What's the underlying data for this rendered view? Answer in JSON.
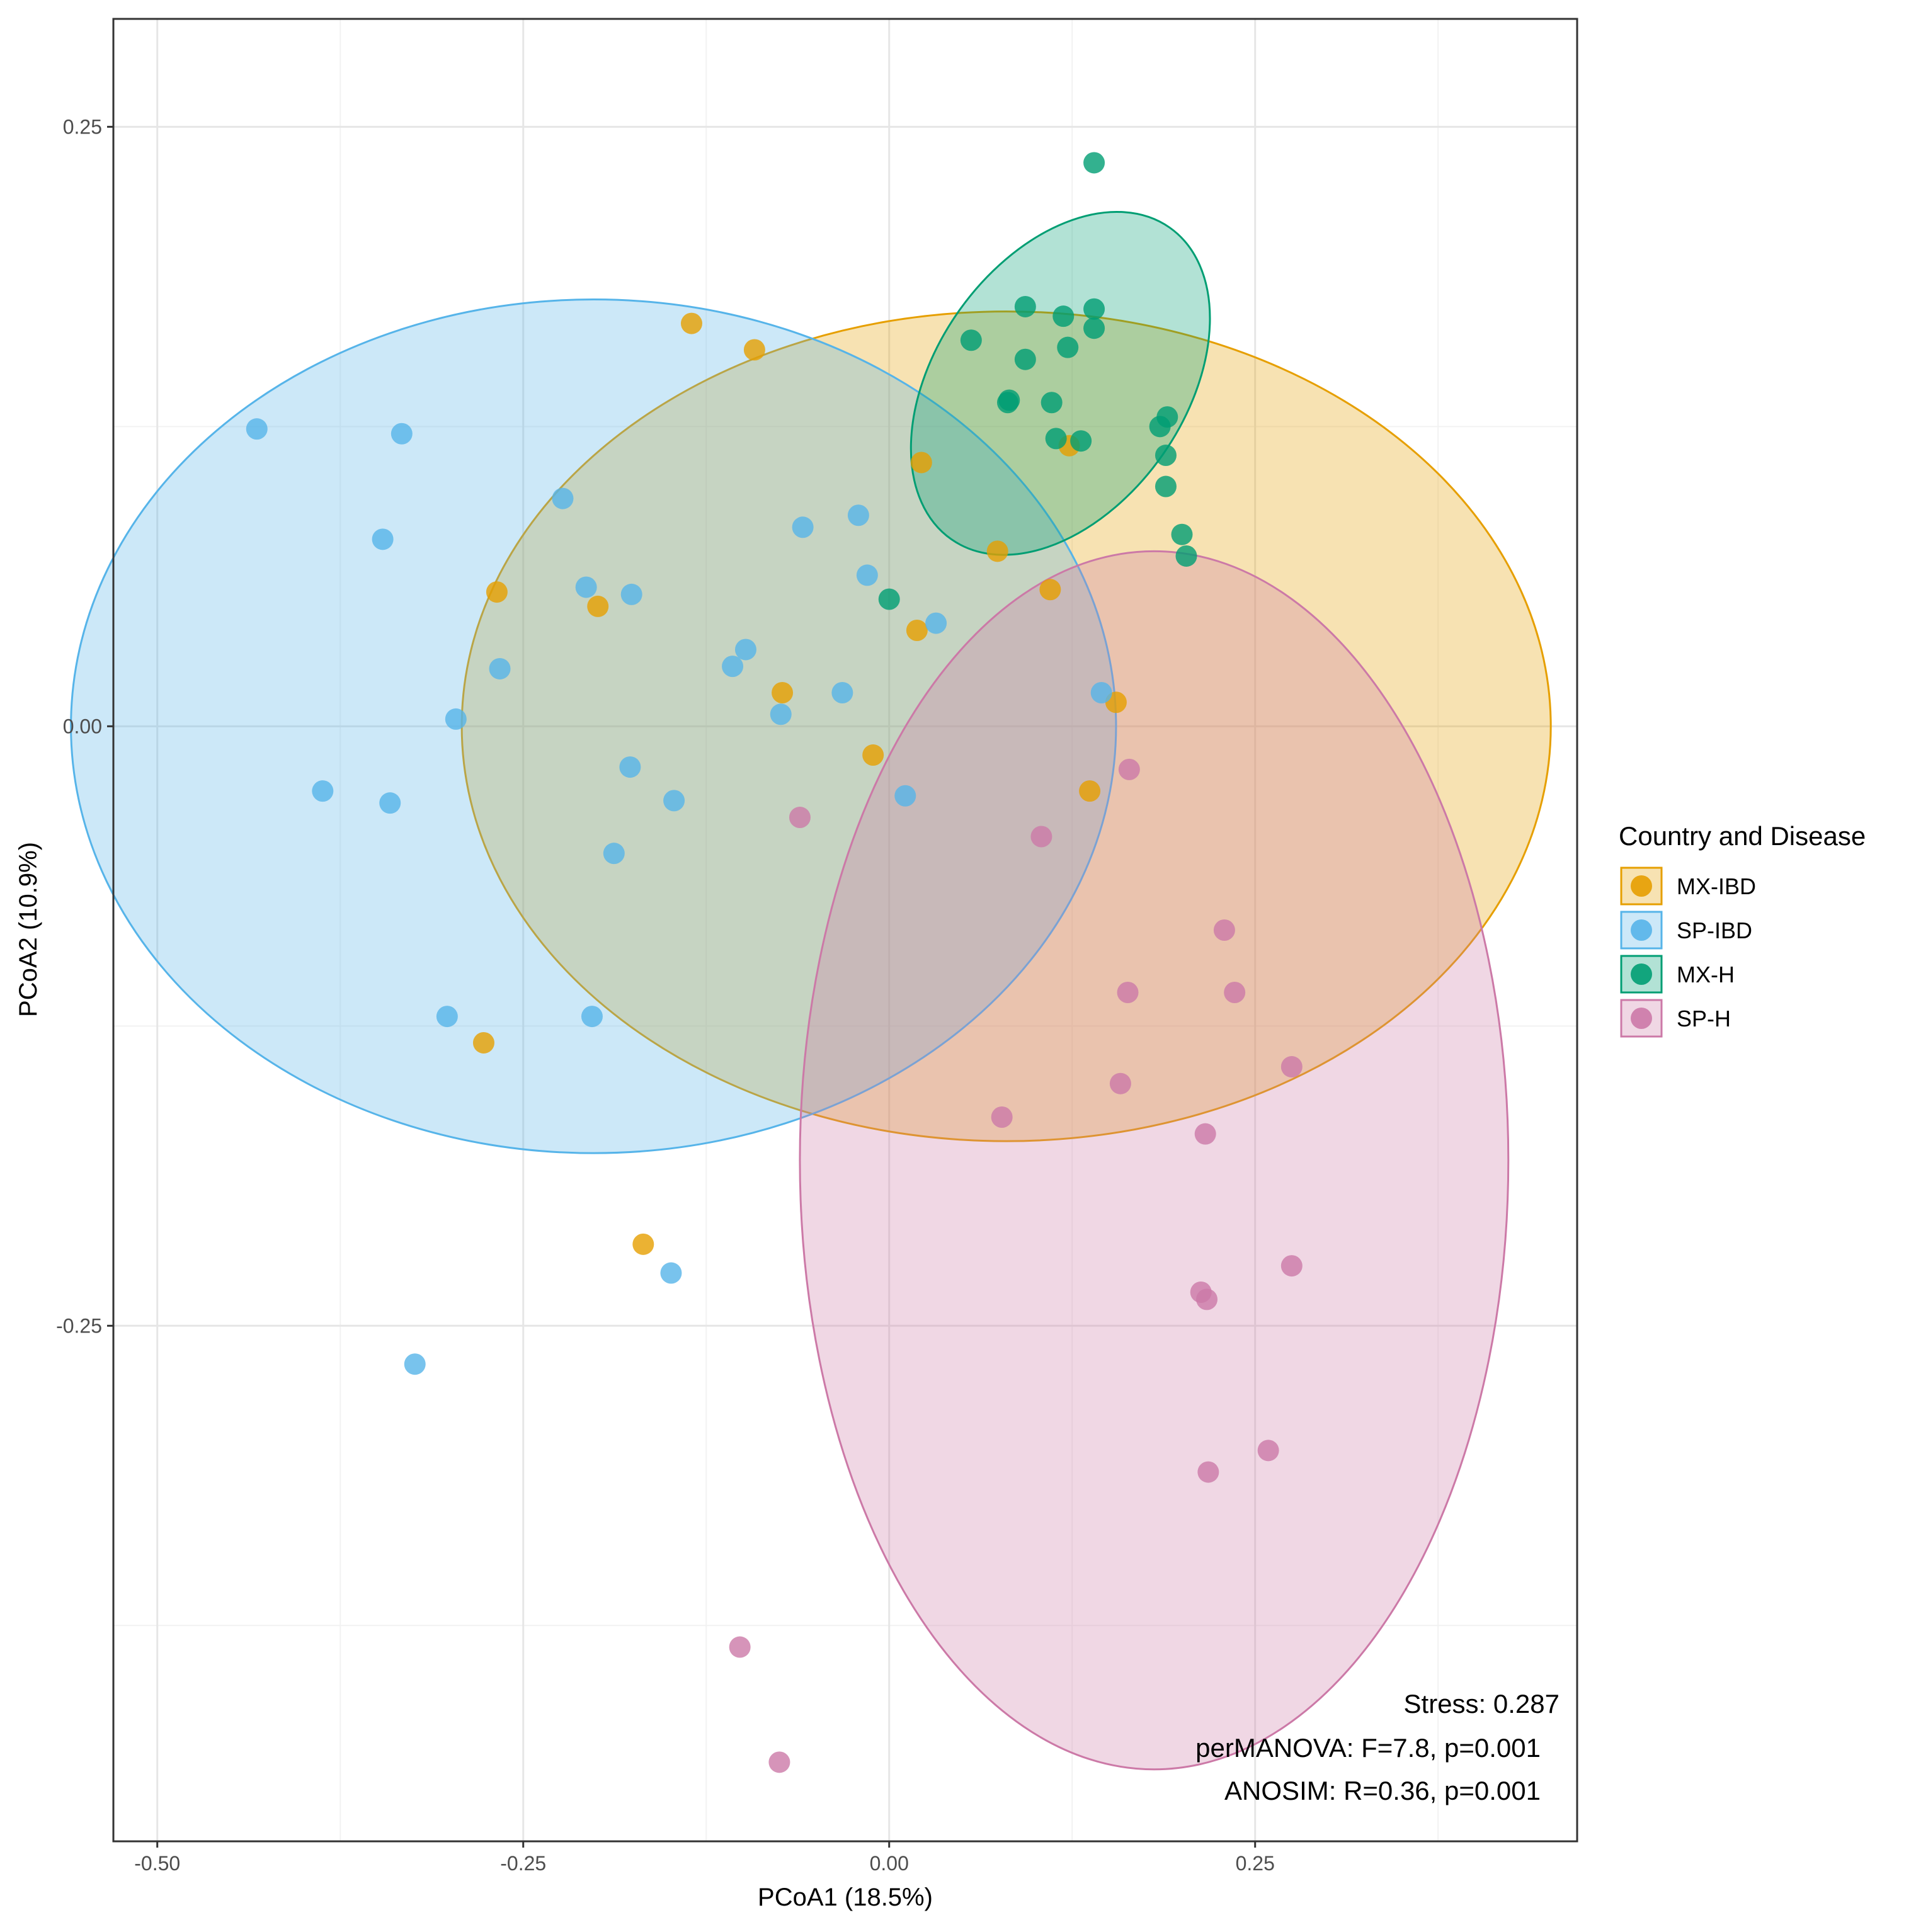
{
  "chart_data": {
    "type": "scatter",
    "subtype": "PCoA ordination with group confidence ellipses",
    "xlabel": "PCoA1 (18.5%)",
    "ylabel": "PCoA2 (10.9%)",
    "xlim": [
      -0.53,
      0.47
    ],
    "ylim": [
      -0.465,
      0.295
    ],
    "x_ticks": [
      -0.5,
      -0.25,
      0.0,
      0.25
    ],
    "x_tick_labels": [
      "-0.50",
      "-0.25",
      "0.00",
      "0.25"
    ],
    "y_ticks": [
      0.25,
      0.0,
      -0.25
    ],
    "y_tick_labels": [
      "0.25",
      "0.00",
      "-0.25"
    ],
    "grid": true,
    "legend": {
      "title": "Country and Disease",
      "position": "right",
      "entries": [
        "MX-IBD",
        "SP-IBD",
        "MX-H",
        "SP-H"
      ]
    },
    "annotations": [
      "Stress: 0.287",
      "perMANOVA: F=7.8, p=0.001",
      "ANOSIM: R=0.36, p=0.001"
    ],
    "series": [
      {
        "name": "MX-IBD",
        "color": "#E69F00",
        "ellipse": {
          "cx": 0.08,
          "cy": 0.0,
          "rx": 0.372,
          "ry": 0.173
        },
        "points": [
          [
            -0.135,
            0.168
          ],
          [
            -0.092,
            0.157
          ],
          [
            0.022,
            0.11
          ],
          [
            0.074,
            0.073
          ],
          [
            -0.268,
            0.056
          ],
          [
            -0.199,
            0.05
          ],
          [
            0.019,
            0.04
          ],
          [
            -0.073,
            0.014
          ],
          [
            -0.011,
            -0.012
          ],
          [
            0.155,
            0.01
          ],
          [
            0.11,
            0.057
          ],
          [
            0.137,
            -0.027
          ],
          [
            -0.277,
            -0.132
          ],
          [
            -0.168,
            -0.216
          ],
          [
            0.123,
            0.117
          ]
        ]
      },
      {
        "name": "SP-IBD",
        "color": "#56B4E9",
        "ellipse": {
          "cx": -0.202,
          "cy": 0.0,
          "rx": 0.357,
          "ry": 0.178
        },
        "points": [
          [
            -0.432,
            0.124
          ],
          [
            -0.333,
            0.122
          ],
          [
            -0.223,
            0.095
          ],
          [
            -0.059,
            0.083
          ],
          [
            -0.021,
            0.088
          ],
          [
            -0.346,
            0.078
          ],
          [
            -0.207,
            0.058
          ],
          [
            -0.176,
            0.055
          ],
          [
            -0.015,
            0.063
          ],
          [
            0.032,
            0.043
          ],
          [
            -0.098,
            0.032
          ],
          [
            -0.107,
            0.025
          ],
          [
            -0.266,
            0.024
          ],
          [
            -0.296,
            0.003
          ],
          [
            -0.074,
            0.005
          ],
          [
            -0.032,
            0.014
          ],
          [
            0.145,
            0.014
          ],
          [
            -0.177,
            -0.017
          ],
          [
            -0.147,
            -0.031
          ],
          [
            -0.341,
            -0.032
          ],
          [
            -0.387,
            -0.027
          ],
          [
            0.011,
            -0.029
          ],
          [
            -0.188,
            -0.053
          ],
          [
            -0.302,
            -0.121
          ],
          [
            -0.203,
            -0.121
          ],
          [
            -0.149,
            -0.228
          ],
          [
            -0.324,
            -0.266
          ]
        ]
      },
      {
        "name": "MX-H",
        "color": "#009E73",
        "ellipse": {
          "cx": 0.117,
          "cy": 0.143,
          "rx": 0.13,
          "ry": 0.052,
          "angle_deg": -55
        },
        "points": [
          [
            0.14,
            0.235
          ],
          [
            0.093,
            0.175
          ],
          [
            0.119,
            0.171
          ],
          [
            0.14,
            0.174
          ],
          [
            0.14,
            0.166
          ],
          [
            0.056,
            0.161
          ],
          [
            0.122,
            0.158
          ],
          [
            0.093,
            0.153
          ],
          [
            0.081,
            0.135
          ],
          [
            0.111,
            0.135
          ],
          [
            0.082,
            0.136
          ],
          [
            0.19,
            0.129
          ],
          [
            0.185,
            0.125
          ],
          [
            0.114,
            0.12
          ],
          [
            0.131,
            0.119
          ],
          [
            0.189,
            0.113
          ],
          [
            0.189,
            0.1
          ],
          [
            0.2,
            0.08
          ],
          [
            0.203,
            0.071
          ],
          [
            0.0,
            0.053
          ]
        ]
      },
      {
        "name": "SP-H",
        "color": "#CC79A7",
        "ellipse": {
          "cx": 0.181,
          "cy": -0.181,
          "rx": 0.242,
          "ry": 0.254
        },
        "points": [
          [
            0.164,
            -0.018
          ],
          [
            -0.061,
            -0.038
          ],
          [
            0.104,
            -0.046
          ],
          [
            0.229,
            -0.085
          ],
          [
            0.163,
            -0.111
          ],
          [
            0.236,
            -0.111
          ],
          [
            0.275,
            -0.142
          ],
          [
            0.158,
            -0.149
          ],
          [
            0.077,
            -0.163
          ],
          [
            0.216,
            -0.17
          ],
          [
            0.275,
            -0.225
          ],
          [
            0.213,
            -0.236
          ],
          [
            0.217,
            -0.239
          ],
          [
            0.259,
            -0.302
          ],
          [
            0.218,
            -0.311
          ],
          [
            -0.102,
            -0.384
          ],
          [
            -0.075,
            -0.432
          ]
        ]
      }
    ]
  }
}
